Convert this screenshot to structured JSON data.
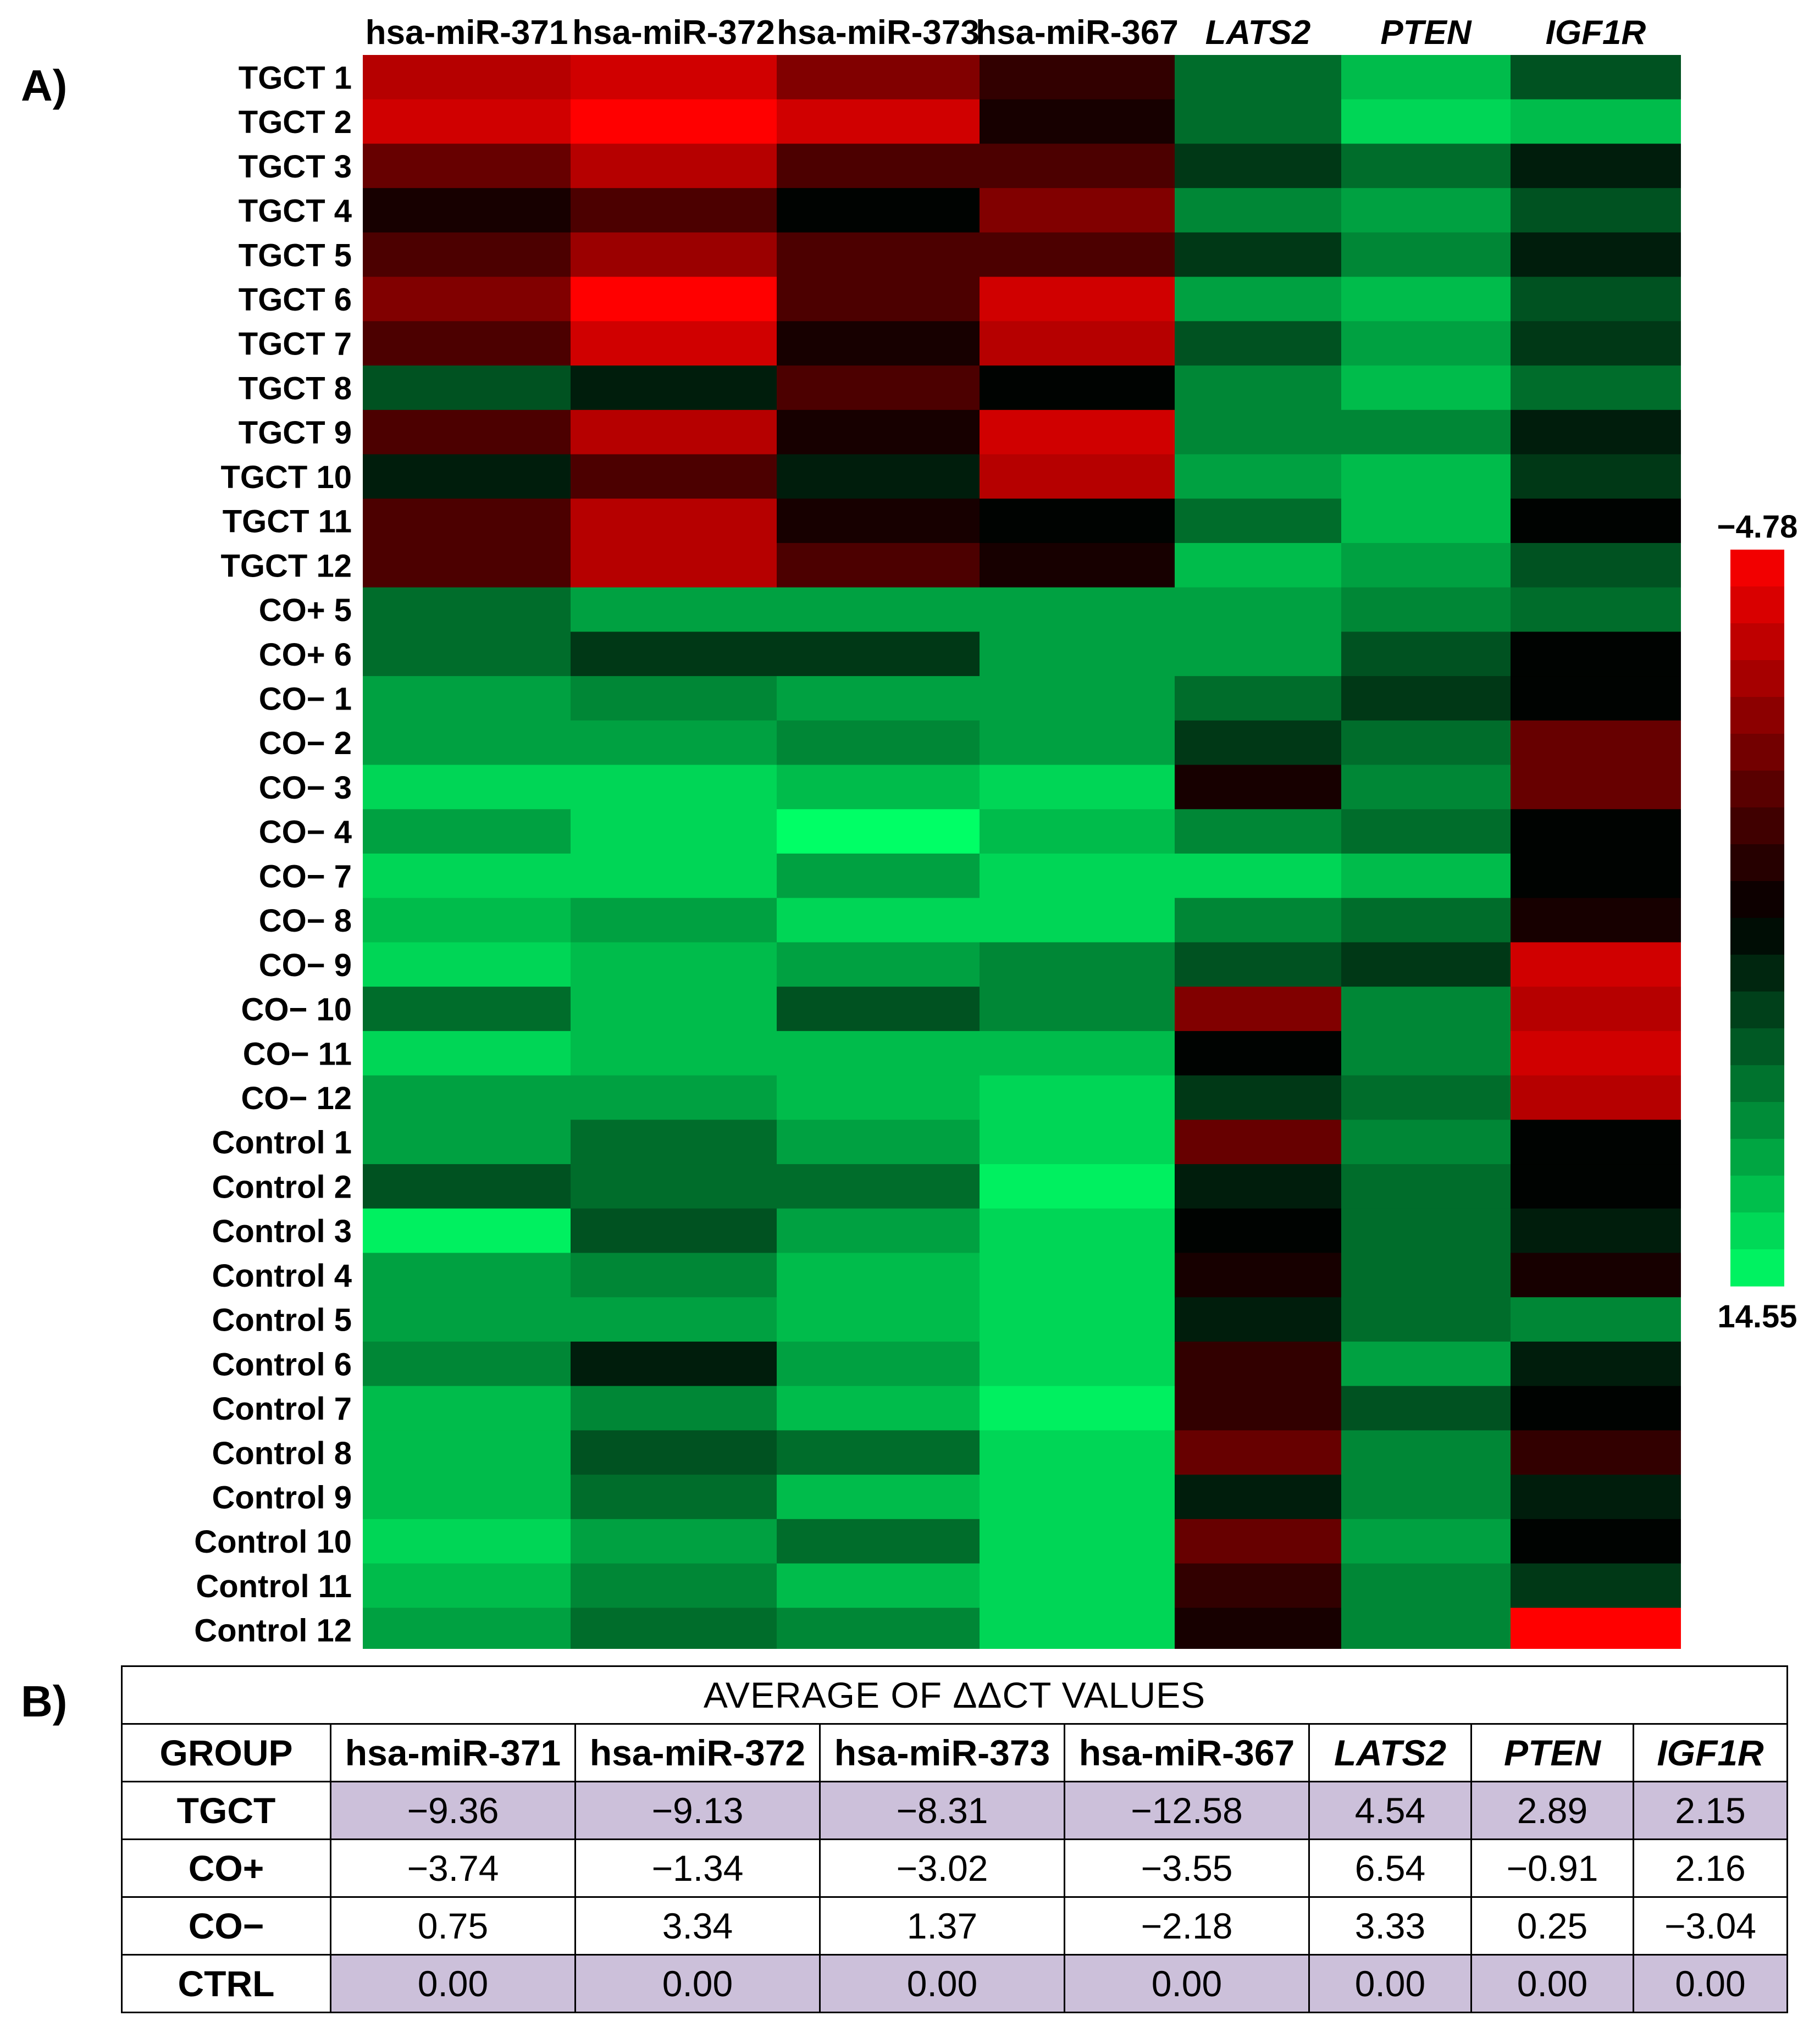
{
  "panel_labels": {
    "a": "A)",
    "b": "B)"
  },
  "chart_data": {
    "type": "heatmap",
    "columns": [
      "hsa-miR-371",
      "hsa-miR-372",
      "hsa-miR-373",
      "hsa-miR-367",
      "LATS2",
      "PTEN",
      "IGF1R"
    ],
    "italic_columns": [
      "LATS2",
      "PTEN",
      "IGF1R"
    ],
    "rows": [
      "TGCT 1",
      "TGCT 2",
      "TGCT 3",
      "TGCT 4",
      "TGCT 5",
      "TGCT 6",
      "TGCT 7",
      "TGCT 8",
      "TGCT 9",
      "TGCT 10",
      "TGCT 11",
      "TGCT 12",
      "CO+ 5",
      "CO+ 6",
      "CO− 1",
      "CO− 2",
      "CO− 3",
      "CO− 4",
      "CO− 7",
      "CO− 8",
      "CO− 9",
      "CO− 10",
      "CO− 11",
      "CO− 12",
      "Control 1",
      "Control 2",
      "Control 3",
      "Control 4",
      "Control 5",
      "Control 6",
      "Control 7",
      "Control 8",
      "Control 9",
      "Control 10",
      "Control 11",
      "Control 12"
    ],
    "values": [
      [
        -2,
        -3,
        0,
        3,
        9,
        12,
        8
      ],
      [
        -3,
        -4.78,
        -3,
        4,
        9,
        13,
        12
      ],
      [
        1,
        -2,
        2,
        2,
        7,
        9,
        6
      ],
      [
        4,
        2,
        5,
        0,
        10,
        11,
        8
      ],
      [
        2,
        -1,
        2,
        2,
        7,
        10,
        6
      ],
      [
        0,
        -4.78,
        2,
        -3,
        11,
        12,
        8
      ],
      [
        2,
        -3,
        4,
        -2,
        8,
        11,
        7
      ],
      [
        8,
        6,
        2,
        5,
        10,
        12,
        9
      ],
      [
        2,
        -2,
        4,
        -3,
        10,
        10,
        6
      ],
      [
        6,
        2,
        6,
        -2,
        11,
        12,
        7
      ],
      [
        2,
        -2,
        4,
        5,
        9,
        12,
        5
      ],
      [
        2,
        -2,
        2,
        4,
        12,
        11,
        8
      ],
      [
        9,
        11,
        11,
        11,
        11,
        10,
        9
      ],
      [
        9,
        7,
        7,
        11,
        11,
        8,
        5
      ],
      [
        11,
        10,
        11,
        11,
        9,
        7,
        5
      ],
      [
        11,
        11,
        10,
        11,
        7,
        9,
        1
      ],
      [
        13,
        13,
        12,
        13,
        4,
        10,
        1
      ],
      [
        11,
        13,
        14.55,
        12,
        10,
        9,
        5
      ],
      [
        13,
        13,
        11,
        13,
        13,
        12,
        5
      ],
      [
        12,
        11,
        13,
        13,
        10,
        9,
        4
      ],
      [
        13,
        12,
        11,
        10,
        8,
        7,
        -3
      ],
      [
        9,
        12,
        8,
        10,
        0,
        10,
        -2
      ],
      [
        13,
        12,
        12,
        12,
        5,
        10,
        -3
      ],
      [
        11,
        11,
        12,
        13,
        7,
        9,
        -2
      ],
      [
        11,
        9,
        11,
        13,
        1,
        10,
        5
      ],
      [
        8,
        9,
        9,
        14,
        6,
        9,
        5
      ],
      [
        14,
        8,
        11,
        13,
        5,
        9,
        6
      ],
      [
        11,
        10,
        12,
        13,
        4,
        9,
        4
      ],
      [
        11,
        11,
        12,
        13,
        6,
        9,
        10
      ],
      [
        10,
        6,
        11,
        13,
        3,
        11,
        6
      ],
      [
        12,
        10,
        12,
        14,
        3,
        8,
        5
      ],
      [
        12,
        8,
        9,
        13,
        1,
        10,
        3
      ],
      [
        12,
        9,
        12,
        13,
        6,
        10,
        6
      ],
      [
        13,
        11,
        9,
        13,
        1,
        11,
        5
      ],
      [
        12,
        10,
        12,
        13,
        3,
        10,
        7
      ],
      [
        11,
        9,
        10,
        13,
        4,
        10,
        -4.78
      ]
    ],
    "scale": {
      "min": -4.78,
      "max": 14.55,
      "min_label": "−4.78",
      "max_label": "14.55",
      "low_color": "#ff0000",
      "mid_color": "#000000",
      "high_color": "#00ff66"
    }
  },
  "table": {
    "title": "AVERAGE OF ΔΔCT VALUES",
    "headers": [
      "GROUP",
      "hsa-miR-371",
      "hsa-miR-372",
      "hsa-miR-373",
      "hsa-miR-367",
      "LATS2",
      "PTEN",
      "IGF1R"
    ],
    "rows": [
      {
        "group": "TGCT",
        "values": [
          "−9.36",
          "−9.13",
          "−8.31",
          "−12.58",
          "4.54",
          "2.89",
          "2.15"
        ]
      },
      {
        "group": "CO+",
        "values": [
          "−3.74",
          "−1.34",
          "−3.02",
          "−3.55",
          "6.54",
          "−0.91",
          "2.16"
        ]
      },
      {
        "group": "CO−",
        "values": [
          "0.75",
          "3.34",
          "1.37",
          "−2.18",
          "3.33",
          "0.25",
          "−3.04"
        ]
      },
      {
        "group": "CTRL",
        "values": [
          "0.00",
          "0.00",
          "0.00",
          "0.00",
          "0.00",
          "0.00",
          "0.00"
        ]
      }
    ],
    "shaded_color": "#ccc0da"
  }
}
